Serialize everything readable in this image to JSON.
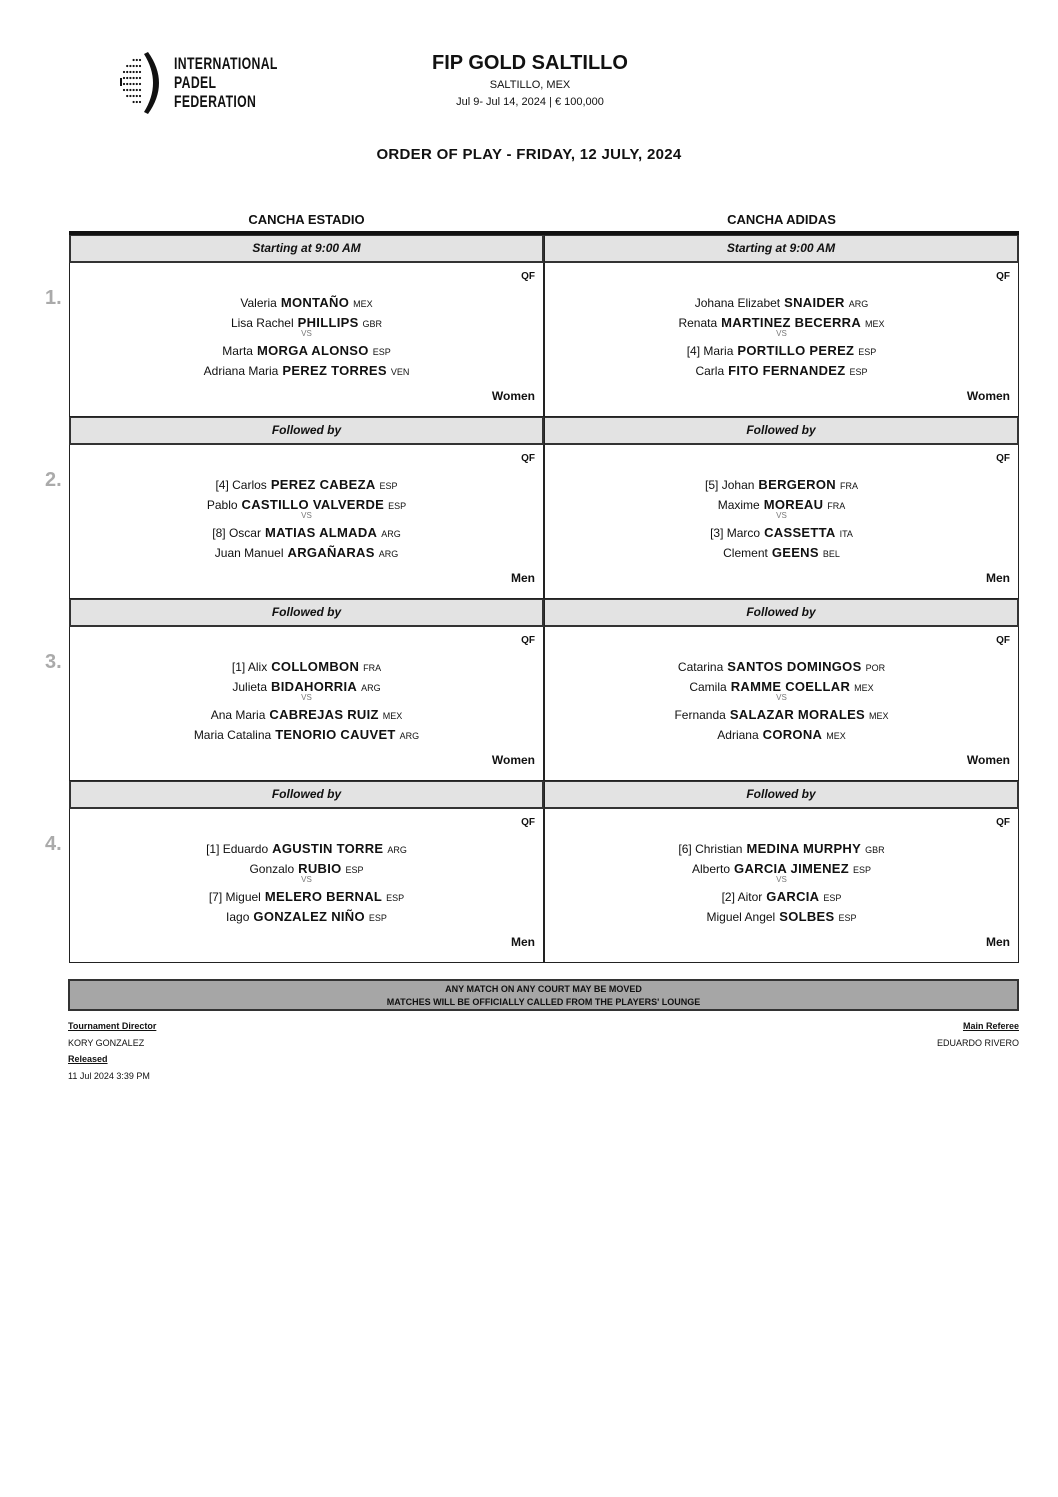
{
  "logo": {
    "text": [
      "INTERNATIONAL",
      "PADEL",
      "FEDERATION"
    ]
  },
  "header": {
    "title": "FIP GOLD SALTILLO",
    "location": "SALTILLO, MEX",
    "dates": "Jul 9- Jul 14, 2024  |  € 100,000",
    "order_of_play": "ORDER OF PLAY - FRIDAY, 12 JULY, 2024"
  },
  "courts": [
    "CANCHA ESTADIO",
    "CANCHA ADIDAS"
  ],
  "rows": [
    {
      "num": "1.",
      "matches": [
        {
          "bar": "Starting at 9:00 AM",
          "round": "QF",
          "gender": "Women",
          "team1": [
            {
              "seed": "",
              "first": "Valeria",
              "last": "MONTAÑO",
              "country": "MEX"
            },
            {
              "seed": "",
              "first": "Lisa Rachel",
              "last": "PHILLIPS",
              "country": "GBR"
            }
          ],
          "vs": "VS",
          "team2": [
            {
              "seed": "",
              "first": "Marta",
              "last": "MORGA ALONSO",
              "country": "ESP"
            },
            {
              "seed": "",
              "first": "Adriana Maria",
              "last": "PEREZ TORRES",
              "country": "VEN"
            }
          ]
        },
        {
          "bar": "Starting at 9:00 AM",
          "round": "QF",
          "gender": "Women",
          "team1": [
            {
              "seed": "",
              "first": "Johana Elizabet",
              "last": "SNAIDER",
              "country": "ARG"
            },
            {
              "seed": "",
              "first": "Renata",
              "last": "MARTINEZ BECERRA",
              "country": "MEX"
            }
          ],
          "vs": "VS",
          "team2": [
            {
              "seed": "[4]",
              "first": "Maria",
              "last": "PORTILLO PEREZ",
              "country": "ESP"
            },
            {
              "seed": "",
              "first": "Carla",
              "last": "FITO FERNANDEZ",
              "country": "ESP"
            }
          ]
        }
      ]
    },
    {
      "num": "2.",
      "matches": [
        {
          "bar": "Followed by",
          "round": "QF",
          "gender": "Men",
          "team1": [
            {
              "seed": "[4]",
              "first": "Carlos",
              "last": "PEREZ CABEZA",
              "country": "ESP"
            },
            {
              "seed": "",
              "first": "Pablo",
              "last": "CASTILLO VALVERDE",
              "country": "ESP"
            }
          ],
          "vs": "VS",
          "team2": [
            {
              "seed": "[8]",
              "first": "Oscar",
              "last": "MATIAS ALMADA",
              "country": "ARG"
            },
            {
              "seed": "",
              "first": "Juan Manuel",
              "last": "ARGAÑARAS",
              "country": "ARG"
            }
          ]
        },
        {
          "bar": "Followed by",
          "round": "QF",
          "gender": "Men",
          "team1": [
            {
              "seed": "[5]",
              "first": "Johan",
              "last": "BERGERON",
              "country": "FRA"
            },
            {
              "seed": "",
              "first": "Maxime",
              "last": "MOREAU",
              "country": "FRA"
            }
          ],
          "vs": "VS",
          "team2": [
            {
              "seed": "[3]",
              "first": "Marco",
              "last": "CASSETTA",
              "country": "ITA"
            },
            {
              "seed": "",
              "first": "Clement",
              "last": "GEENS",
              "country": "BEL"
            }
          ]
        }
      ]
    },
    {
      "num": "3.",
      "matches": [
        {
          "bar": "Followed by",
          "round": "QF",
          "gender": "Women",
          "team1": [
            {
              "seed": "[1]",
              "first": "Alix",
              "last": "COLLOMBON",
              "country": "FRA"
            },
            {
              "seed": "",
              "first": "Julieta",
              "last": "BIDAHORRIA",
              "country": "ARG"
            }
          ],
          "vs": "VS",
          "team2": [
            {
              "seed": "",
              "first": "Ana Maria",
              "last": "CABREJAS RUIZ",
              "country": "MEX"
            },
            {
              "seed": "",
              "first": "Maria Catalina",
              "last": "TENORIO CAUVET",
              "country": "ARG"
            }
          ]
        },
        {
          "bar": "Followed by",
          "round": "QF",
          "gender": "Women",
          "team1": [
            {
              "seed": "",
              "first": "Catarina",
              "last": "SANTOS DOMINGOS",
              "country": "POR"
            },
            {
              "seed": "",
              "first": "Camila",
              "last": "RAMME COELLAR",
              "country": "MEX"
            }
          ],
          "vs": "VS",
          "team2": [
            {
              "seed": "",
              "first": "Fernanda",
              "last": "SALAZAR MORALES",
              "country": "MEX"
            },
            {
              "seed": "",
              "first": "Adriana",
              "last": "CORONA",
              "country": "MEX"
            }
          ]
        }
      ]
    },
    {
      "num": "4.",
      "matches": [
        {
          "bar": "Followed by",
          "round": "QF",
          "gender": "Men",
          "team1": [
            {
              "seed": "[1]",
              "first": "Eduardo",
              "last": "AGUSTIN TORRE",
              "country": "ARG"
            },
            {
              "seed": "",
              "first": "Gonzalo",
              "last": "RUBIO",
              "country": "ESP"
            }
          ],
          "vs": "VS",
          "team2": [
            {
              "seed": "[7]",
              "first": "Miguel",
              "last": "MELERO BERNAL",
              "country": "ESP"
            },
            {
              "seed": "",
              "first": "Iago",
              "last": "GONZALEZ NIÑO",
              "country": "ESP"
            }
          ]
        },
        {
          "bar": "Followed by",
          "round": "QF",
          "gender": "Men",
          "team1": [
            {
              "seed": "[6]",
              "first": "Christian",
              "last": "MEDINA MURPHY",
              "country": "GBR"
            },
            {
              "seed": "",
              "first": "Alberto",
              "last": "GARCIA JIMENEZ",
              "country": "ESP"
            }
          ],
          "vs": "VS",
          "team2": [
            {
              "seed": "[2]",
              "first": "Aitor",
              "last": "GARCIA",
              "country": "ESP"
            },
            {
              "seed": "",
              "first": "Miguel Angel",
              "last": "SOLBES",
              "country": "ESP"
            }
          ]
        }
      ]
    }
  ],
  "notice": [
    "ANY MATCH ON ANY COURT MAY BE MOVED",
    "MATCHES WILL BE OFFICIALLY CALLED FROM THE PLAYERS' LOUNGE"
  ],
  "footer": {
    "director_label": "Tournament Director",
    "director": "KORY GONZALEZ",
    "released_label": "Released",
    "released": "11 Jul 2024   3:39 PM",
    "referee_label": "Main Referee",
    "referee": "EDUARDO RIVERO"
  }
}
